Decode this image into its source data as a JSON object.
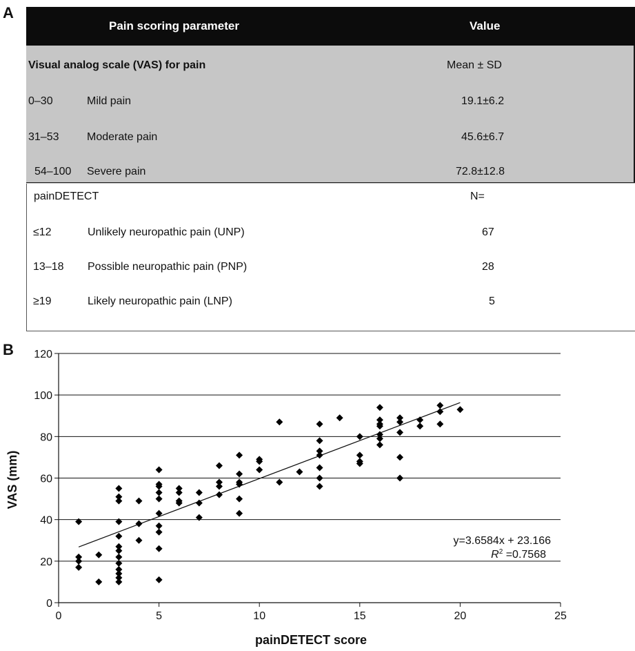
{
  "panels": {
    "a": "A",
    "b": "B"
  },
  "table": {
    "header": {
      "parameter": "Pain scoring parameter",
      "value": "Value"
    },
    "vas_section": {
      "title": "Visual analog scale (VAS) for pain",
      "value_header": "Mean ± SD",
      "rows": [
        {
          "range": "0–30",
          "label": "Mild pain",
          "value": "19.1±6.2"
        },
        {
          "range": "31–53",
          "label": "Moderate pain",
          "value": "45.6±6.7"
        },
        {
          "range": "54–100",
          "label": "Severe pain",
          "value": "72.8±12.8"
        }
      ]
    },
    "paindetect_section": {
      "title": "painDETECT",
      "value_header": "N=",
      "rows": [
        {
          "range": "≤12",
          "label": "Unlikely neuropathic pain (UNP)",
          "value": "67"
        },
        {
          "range": "13–18",
          "label": "Possible neuropathic pain (PNP)",
          "value": "28"
        },
        {
          "range": "≥19",
          "label": "Likely neuropathic pain (LNP)",
          "value": "5"
        }
      ]
    }
  },
  "chart_data": {
    "type": "scatter",
    "xlabel": "painDETECT score",
    "ylabel": "VAS (mm)",
    "xlim": [
      0,
      25
    ],
    "ylim": [
      0,
      120
    ],
    "xticks": [
      0,
      5,
      10,
      15,
      20,
      25
    ],
    "yticks": [
      0,
      20,
      40,
      60,
      80,
      100,
      120
    ],
    "grid": "horizontal",
    "marker": "diamond",
    "marker_color": "#000000",
    "points": [
      {
        "x": 1,
        "y": 39
      },
      {
        "x": 1,
        "y": 22
      },
      {
        "x": 1,
        "y": 20
      },
      {
        "x": 1,
        "y": 17
      },
      {
        "x": 2,
        "y": 23
      },
      {
        "x": 2,
        "y": 10
      },
      {
        "x": 3,
        "y": 55
      },
      {
        "x": 3,
        "y": 51
      },
      {
        "x": 3,
        "y": 49
      },
      {
        "x": 3,
        "y": 39
      },
      {
        "x": 3,
        "y": 32
      },
      {
        "x": 3,
        "y": 27
      },
      {
        "x": 3,
        "y": 25
      },
      {
        "x": 3,
        "y": 22
      },
      {
        "x": 3,
        "y": 19
      },
      {
        "x": 3,
        "y": 16
      },
      {
        "x": 3,
        "y": 14
      },
      {
        "x": 3,
        "y": 12
      },
      {
        "x": 3,
        "y": 10
      },
      {
        "x": 4,
        "y": 49
      },
      {
        "x": 4,
        "y": 38
      },
      {
        "x": 4,
        "y": 30
      },
      {
        "x": 5,
        "y": 64
      },
      {
        "x": 5,
        "y": 57
      },
      {
        "x": 5,
        "y": 56
      },
      {
        "x": 5,
        "y": 53
      },
      {
        "x": 5,
        "y": 50
      },
      {
        "x": 5,
        "y": 43
      },
      {
        "x": 5,
        "y": 37
      },
      {
        "x": 5,
        "y": 34
      },
      {
        "x": 5,
        "y": 26
      },
      {
        "x": 5,
        "y": 11
      },
      {
        "x": 6,
        "y": 55
      },
      {
        "x": 6,
        "y": 53
      },
      {
        "x": 6,
        "y": 49
      },
      {
        "x": 6,
        "y": 48
      },
      {
        "x": 7,
        "y": 53
      },
      {
        "x": 7,
        "y": 48
      },
      {
        "x": 7,
        "y": 41
      },
      {
        "x": 8,
        "y": 66
      },
      {
        "x": 8,
        "y": 58
      },
      {
        "x": 8,
        "y": 56
      },
      {
        "x": 8,
        "y": 52
      },
      {
        "x": 9,
        "y": 71
      },
      {
        "x": 9,
        "y": 62
      },
      {
        "x": 9,
        "y": 58
      },
      {
        "x": 9,
        "y": 57
      },
      {
        "x": 9,
        "y": 50
      },
      {
        "x": 9,
        "y": 43
      },
      {
        "x": 10,
        "y": 69
      },
      {
        "x": 10,
        "y": 68
      },
      {
        "x": 10,
        "y": 64
      },
      {
        "x": 11,
        "y": 87
      },
      {
        "x": 11,
        "y": 58
      },
      {
        "x": 12,
        "y": 63
      },
      {
        "x": 13,
        "y": 86
      },
      {
        "x": 13,
        "y": 78
      },
      {
        "x": 13,
        "y": 73
      },
      {
        "x": 13,
        "y": 71
      },
      {
        "x": 13,
        "y": 65
      },
      {
        "x": 13,
        "y": 60
      },
      {
        "x": 13,
        "y": 56
      },
      {
        "x": 14,
        "y": 89
      },
      {
        "x": 15,
        "y": 80
      },
      {
        "x": 15,
        "y": 71
      },
      {
        "x": 15,
        "y": 68
      },
      {
        "x": 15,
        "y": 67
      },
      {
        "x": 16,
        "y": 94
      },
      {
        "x": 16,
        "y": 88
      },
      {
        "x": 16,
        "y": 86
      },
      {
        "x": 16,
        "y": 85
      },
      {
        "x": 16,
        "y": 81
      },
      {
        "x": 16,
        "y": 79
      },
      {
        "x": 16,
        "y": 76
      },
      {
        "x": 17,
        "y": 89
      },
      {
        "x": 17,
        "y": 87
      },
      {
        "x": 17,
        "y": 82
      },
      {
        "x": 17,
        "y": 70
      },
      {
        "x": 17,
        "y": 60
      },
      {
        "x": 18,
        "y": 88
      },
      {
        "x": 18,
        "y": 85
      },
      {
        "x": 19,
        "y": 95
      },
      {
        "x": 19,
        "y": 92
      },
      {
        "x": 19,
        "y": 86
      },
      {
        "x": 20,
        "y": 93
      }
    ],
    "trendline": {
      "slope": 3.6584,
      "intercept": 23.166,
      "x_range": [
        1,
        20
      ]
    },
    "annotations": {
      "equation": "y=3.6584x + 23.166",
      "r2_label": "R",
      "r2_sup": "2",
      "r2_value": " =0.7568"
    }
  }
}
